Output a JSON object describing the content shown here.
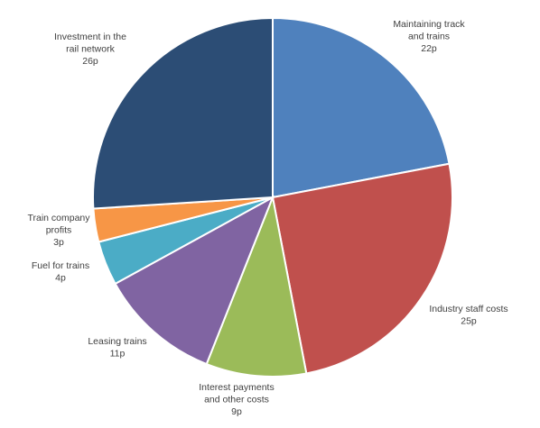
{
  "chart_data": {
    "type": "pie",
    "title": "",
    "unit": "p",
    "slices": [
      {
        "name": "Maintaining track and trains",
        "label_lines": [
          "Maintaining track",
          "and trains"
        ],
        "value": 22,
        "value_label": "22p",
        "color": "#4F81BD"
      },
      {
        "name": "Industry staff costs",
        "label_lines": [
          "Industry staff costs"
        ],
        "value": 25,
        "value_label": "25p",
        "color": "#C0504D"
      },
      {
        "name": "Interest payments and other costs",
        "label_lines": [
          "Interest payments",
          "and other costs"
        ],
        "value": 9,
        "value_label": "9p",
        "color": "#9BBB59"
      },
      {
        "name": "Leasing trains",
        "label_lines": [
          "Leasing trains"
        ],
        "value": 11,
        "value_label": "11p",
        "color": "#8064A2"
      },
      {
        "name": "Fuel for trains",
        "label_lines": [
          "Fuel for trains"
        ],
        "value": 4,
        "value_label": "4p",
        "color": "#4BACC6"
      },
      {
        "name": "Train company profits",
        "label_lines": [
          "Train company",
          "profits"
        ],
        "value": 3,
        "value_label": "3p",
        "color": "#F79646"
      },
      {
        "name": "Investment in the rail network",
        "label_lines": [
          "Investment in the",
          "rail network"
        ],
        "value": 26,
        "value_label": "26p",
        "color": "#2C4D75"
      }
    ]
  }
}
